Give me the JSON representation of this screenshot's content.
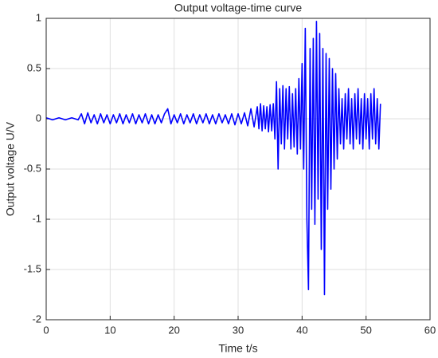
{
  "chart_data": {
    "type": "line",
    "title": "Output voltage-time curve",
    "x_label": "Time t/s",
    "y_label": "Output voltage U/V",
    "xlim": [
      0,
      60
    ],
    "xticks": [
      0,
      10,
      20,
      30,
      40,
      50,
      60
    ],
    "ylim": [
      -2,
      1
    ],
    "yticks": [
      -2,
      -1.5,
      -1,
      -0.5,
      0,
      0.5,
      1
    ],
    "grid": true,
    "x": [
      0,
      1,
      2,
      3,
      4,
      5,
      5.5,
      6,
      6.5,
      7,
      7.5,
      8,
      8.5,
      9,
      9.5,
      10,
      10.5,
      11,
      11.5,
      12,
      12.5,
      13,
      13.5,
      14,
      14.5,
      15,
      15.5,
      16,
      16.5,
      17,
      17.5,
      18,
      18.5,
      19,
      19.5,
      20,
      20.5,
      21,
      21.5,
      22,
      22.5,
      23,
      23.5,
      24,
      24.5,
      25,
      25.5,
      26,
      26.5,
      27,
      27.5,
      28,
      28.5,
      29,
      29.5,
      30,
      30.5,
      31,
      31.5,
      32,
      32.5,
      33,
      33.25,
      33.5,
      33.75,
      34,
      34.25,
      34.5,
      34.75,
      35,
      35.25,
      35.5,
      35.75,
      36,
      36.25,
      36.5,
      36.75,
      37,
      37.25,
      37.5,
      37.75,
      38,
      38.25,
      38.5,
      38.75,
      39,
      39.25,
      39.5,
      39.75,
      40,
      40.25,
      40.5,
      40.75,
      41,
      41.25,
      41.5,
      41.75,
      42,
      42.25,
      42.5,
      42.75,
      43,
      43.25,
      43.5,
      43.75,
      44,
      44.25,
      44.5,
      44.75,
      45,
      45.25,
      45.5,
      45.75,
      46,
      46.25,
      46.5,
      46.75,
      47,
      47.25,
      47.5,
      47.75,
      48,
      48.25,
      48.5,
      48.75,
      49,
      49.25,
      49.5,
      49.75,
      50,
      50.25,
      50.5,
      50.75,
      51,
      51.25,
      51.5,
      51.75,
      52,
      52.25
    ],
    "series": [
      {
        "name": "Output voltage",
        "color": "#0000ff",
        "values": [
          0.01,
          -0.01,
          0.01,
          -0.01,
          0.01,
          -0.01,
          0.05,
          -0.05,
          0.06,
          -0.04,
          0.04,
          -0.05,
          0.05,
          -0.04,
          0.04,
          -0.05,
          0.04,
          -0.04,
          0.05,
          -0.05,
          0.04,
          -0.04,
          0.05,
          -0.05,
          0.04,
          -0.04,
          0.05,
          -0.05,
          0.04,
          -0.05,
          0.04,
          -0.04,
          0.05,
          0.1,
          -0.05,
          0.04,
          -0.04,
          0.05,
          -0.05,
          0.04,
          -0.04,
          0.05,
          -0.05,
          0.04,
          -0.04,
          0.05,
          -0.05,
          0.04,
          -0.05,
          0.05,
          -0.04,
          0.04,
          -0.05,
          0.05,
          -0.06,
          0.05,
          -0.05,
          0.06,
          -0.07,
          0.1,
          -0.08,
          0.12,
          -0.1,
          0.15,
          -0.12,
          0.13,
          -0.1,
          0.12,
          -0.13,
          0.14,
          -0.12,
          0.15,
          -0.2,
          0.37,
          -0.5,
          0.3,
          -0.25,
          0.33,
          -0.3,
          0.3,
          -0.2,
          0.32,
          -0.3,
          0.25,
          -0.28,
          0.3,
          -0.35,
          0.4,
          -0.3,
          0.55,
          -0.5,
          0.9,
          -1.0,
          -1.7,
          0.7,
          -0.9,
          0.8,
          -1.05,
          0.97,
          -0.8,
          0.85,
          -1.3,
          0.7,
          -1.75,
          0.65,
          -0.9,
          0.6,
          -0.7,
          0.5,
          -0.5,
          0.45,
          -0.4,
          0.3,
          -0.25,
          0.2,
          -0.3,
          0.25,
          -0.2,
          0.3,
          -0.25,
          0.2,
          -0.3,
          0.25,
          -0.2,
          0.3,
          -0.25,
          0.2,
          -0.3,
          0.25,
          -0.2,
          0.2,
          -0.3,
          0.25,
          -0.2,
          0.3,
          -0.25,
          0.2,
          -0.3,
          0.15
        ]
      }
    ]
  }
}
